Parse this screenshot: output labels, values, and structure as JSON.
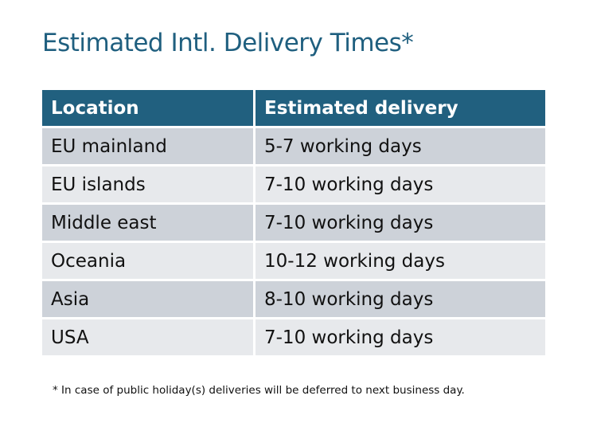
{
  "title": "Estimated Intl. Delivery Times*",
  "table": {
    "headers": [
      "Location",
      "Estimated delivery"
    ],
    "rows": [
      [
        "EU mainland",
        "5-7 working days"
      ],
      [
        "EU islands",
        "7-10 working days"
      ],
      [
        "Middle east",
        "7-10 working days"
      ],
      [
        "Oceania",
        "10-12 working days"
      ],
      [
        "Asia",
        "8-10 working days"
      ],
      [
        "USA",
        "7-10 working days"
      ]
    ]
  },
  "footnote": "* In case of public holiday(s) deliveries will be deferred to next business day.",
  "colors": {
    "header": "#21607f",
    "row_dark": "#cdd2d9",
    "row_light": "#e7e9ec",
    "title": "#1f5f7f"
  }
}
